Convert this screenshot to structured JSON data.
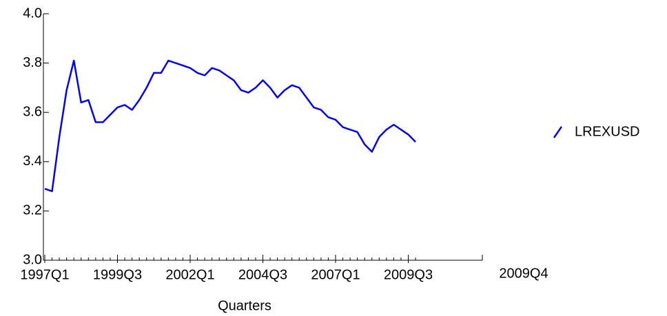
{
  "chart_data": {
    "type": "line",
    "x_label": "Quarters",
    "annotation": "2009Q4",
    "categories": [
      "1997Q1",
      null,
      null,
      null,
      null,
      null,
      null,
      null,
      null,
      null,
      "1999Q3",
      null,
      null,
      null,
      null,
      null,
      null,
      null,
      null,
      null,
      "2002Q1",
      null,
      null,
      null,
      null,
      null,
      null,
      null,
      null,
      null,
      "2004Q3",
      null,
      null,
      null,
      null,
      null,
      null,
      null,
      null,
      null,
      "2007Q1",
      null,
      null,
      null,
      null,
      null,
      null,
      null,
      null,
      null,
      "2009Q3",
      null
    ],
    "series": [
      {
        "name": "LREXUSD",
        "color": "#0000ff",
        "values": [
          3.29,
          3.28,
          3.5,
          3.69,
          3.81,
          3.64,
          3.65,
          3.56,
          3.56,
          3.59,
          3.62,
          3.63,
          3.61,
          3.65,
          3.7,
          3.76,
          3.76,
          3.81,
          3.8,
          3.79,
          3.78,
          3.76,
          3.75,
          3.78,
          3.77,
          3.75,
          3.73,
          3.69,
          3.68,
          3.7,
          3.73,
          3.7,
          3.66,
          3.69,
          3.71,
          3.7,
          3.66,
          3.62,
          3.61,
          3.58,
          3.57,
          3.54,
          3.53,
          3.52,
          3.47,
          3.44,
          3.5,
          3.53,
          3.55,
          3.53,
          3.51,
          3.48
        ]
      }
    ],
    "ylim": [
      3.0,
      4.0
    ],
    "yticks": [
      {
        "value": 3.0,
        "label": "3.0"
      },
      3.2,
      3.4,
      3.6,
      3.8,
      {
        "value": 4.0,
        "label": "4.0"
      }
    ]
  }
}
